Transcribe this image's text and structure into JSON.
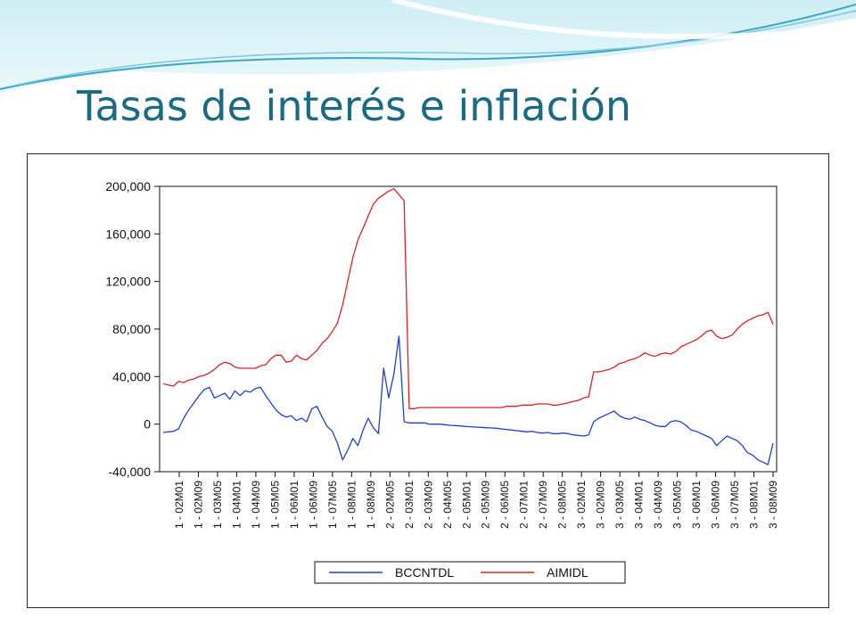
{
  "slide": {
    "title": "Tasas de interés e inflación",
    "title_color": "#1b6a83"
  },
  "chart_data": {
    "type": "line",
    "title": "",
    "xlabel": "",
    "ylabel": "",
    "ylim": [
      -40000,
      200000
    ],
    "yticks": [
      "200,000",
      "160,000",
      "120,000",
      "80,000",
      "40,000",
      "0",
      "-40,000"
    ],
    "ytick_values": [
      200000,
      160000,
      120000,
      80000,
      40000,
      0,
      -40000
    ],
    "xticks": [
      "1 - 02M01",
      "1 - 02M09",
      "1 - 03M05",
      "1 - 04M01",
      "1 - 04M09",
      "1 - 05M05",
      "1 - 06M01",
      "1 - 06M09",
      "1 - 07M05",
      "1 - 08M01",
      "1 - 08M09",
      "2 - 02M05",
      "2 - 03M01",
      "2 - 03M09",
      "2 - 04M05",
      "2 - 05M01",
      "2 - 05M09",
      "2 - 06M05",
      "2 - 07M01",
      "2 - 07M09",
      "2 - 08M05",
      "3 - 02M01",
      "3 - 02M09",
      "3 - 03M05",
      "3 - 04M01",
      "3 - 04M09",
      "3 - 05M05",
      "3 - 06M01",
      "3 - 06M09",
      "3 - 07M05",
      "3 - 08M01",
      "3 - 08M09"
    ],
    "grid": false,
    "legend_position": "bottom",
    "series": [
      {
        "name": "BCCNTDL",
        "color": "#1f3fd6",
        "values": [
          -7000,
          -6500,
          -6000,
          -4000,
          5000,
          12000,
          18000,
          24000,
          29000,
          31000,
          22000,
          24000,
          26000,
          21000,
          28000,
          24000,
          28000,
          27000,
          30000,
          31000,
          24000,
          18000,
          12000,
          8000,
          6000,
          7000,
          3000,
          5000,
          2000,
          13000,
          15000,
          6000,
          -2000,
          -6000,
          -16000,
          -30000,
          -22000,
          -12000,
          -18000,
          -5000,
          5000,
          -3000,
          -8000,
          47000,
          22000,
          42000,
          74000,
          2000,
          1000,
          1000,
          1000,
          1000,
          0,
          0,
          0,
          -500,
          -1000,
          -1200,
          -1500,
          -2000,
          -2200,
          -2500,
          -2700,
          -3000,
          -3200,
          -3500,
          -4000,
          -4500,
          -5000,
          -5500,
          -6000,
          -6500,
          -6000,
          -7000,
          -7500,
          -7000,
          -8000,
          -8000,
          -7500,
          -8000,
          -9000,
          -9500,
          -10000,
          -9000,
          2000,
          5000,
          7000,
          9000,
          11000,
          7000,
          5000,
          4000,
          6000,
          4000,
          3000,
          1000,
          -1000,
          -2000,
          -2000,
          2000,
          3000,
          2000,
          -1000,
          -5000,
          -6000,
          -8000,
          -10000,
          -12000,
          -18000,
          -14000,
          -10000,
          -12000,
          -14000,
          -18000,
          -24000,
          -26000,
          -30000,
          -32000,
          -34000,
          -16000
        ]
      },
      {
        "name": "AIMIDL",
        "color": "#e02020",
        "values": [
          34000,
          33000,
          32000,
          36000,
          35000,
          37000,
          38000,
          40000,
          41000,
          43000,
          46000,
          50000,
          52000,
          51000,
          48000,
          47000,
          47000,
          47000,
          47000,
          49000,
          50000,
          55000,
          58000,
          58000,
          52000,
          53000,
          58000,
          55000,
          54000,
          58000,
          62000,
          68000,
          72000,
          78000,
          85000,
          100000,
          120000,
          140000,
          155000,
          165000,
          175000,
          185000,
          190000,
          193000,
          196000,
          198000,
          193000,
          188000,
          13000,
          13000,
          14000,
          14000,
          14000,
          14000,
          14000,
          14000,
          14000,
          14000,
          14000,
          14000,
          14000,
          14000,
          14000,
          14000,
          14000,
          14000,
          14000,
          15000,
          15000,
          15000,
          16000,
          16000,
          16000,
          17000,
          17000,
          17000,
          16000,
          16000,
          17000,
          18000,
          19000,
          20000,
          22000,
          23000,
          44000,
          44000,
          45000,
          46000,
          48000,
          51000,
          52000,
          54000,
          55000,
          57000,
          60000,
          58000,
          57000,
          59000,
          60000,
          59000,
          61000,
          65000,
          67000,
          69000,
          71000,
          74000,
          78000,
          79000,
          74000,
          72000,
          73000,
          75000,
          80000,
          84000,
          87000,
          89000,
          91000,
          92000,
          94000,
          84000
        ]
      }
    ]
  }
}
